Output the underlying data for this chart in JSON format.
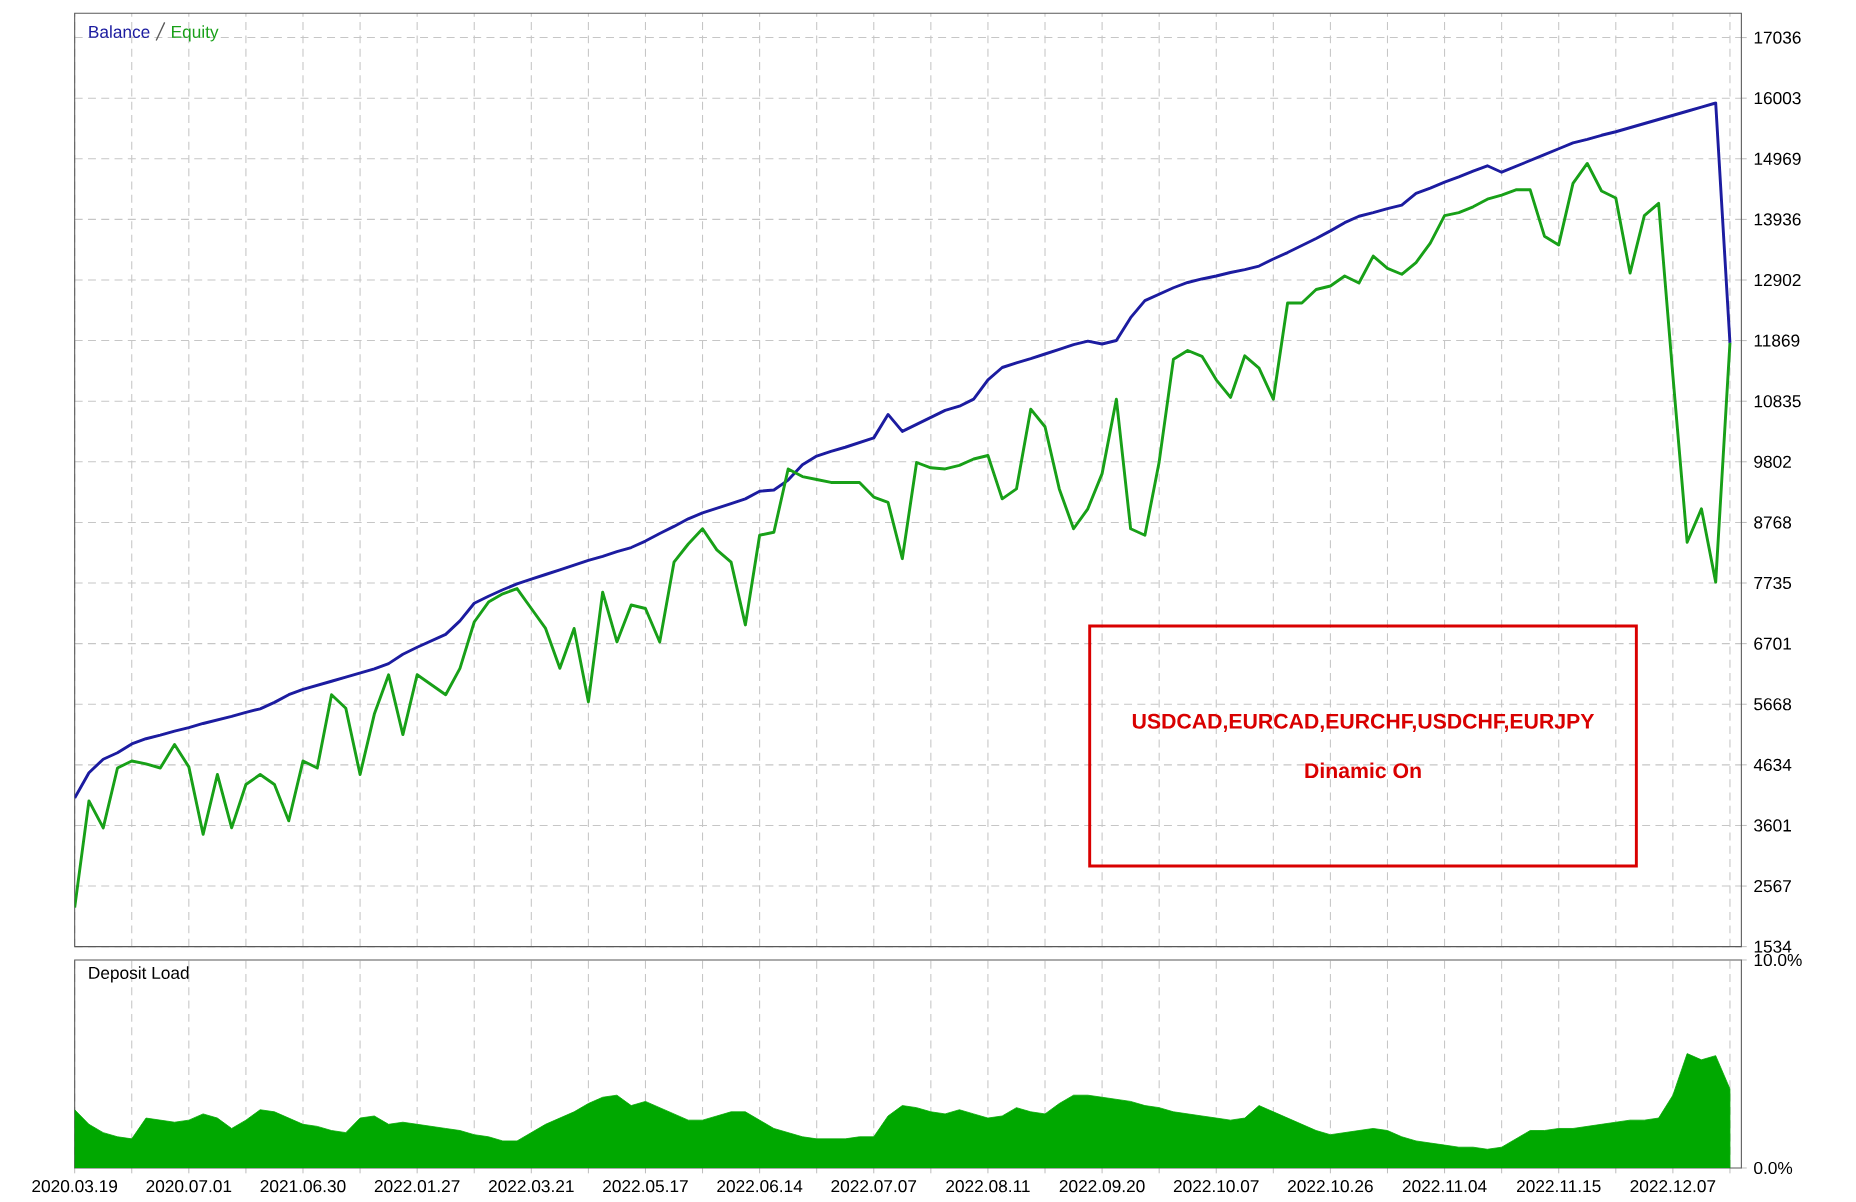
{
  "chart_data": [
    {
      "type": "line",
      "legend": "top left",
      "grid": true,
      "tick_labels": "y",
      "ylim": [
        1534,
        17450
      ],
      "categories": [
        null,
        null,
        null,
        null,
        null,
        null,
        null,
        null,
        null,
        null,
        null,
        null,
        null,
        null,
        null,
        null,
        null,
        null,
        null,
        null,
        null,
        null,
        null,
        null,
        null,
        null,
        null,
        null,
        null,
        null,
        null,
        null,
        null,
        null,
        null,
        null,
        null,
        null,
        null,
        null,
        null,
        null,
        null,
        null,
        null,
        null,
        null,
        null,
        null,
        null,
        null,
        null,
        null,
        null,
        null,
        null,
        null,
        null,
        null,
        null,
        null,
        null,
        null,
        null,
        null,
        null,
        null,
        null,
        null,
        null,
        null,
        null,
        null,
        null,
        null,
        null,
        null,
        null,
        null,
        null,
        null,
        null,
        null,
        null,
        null,
        null,
        null,
        null,
        null,
        null,
        null,
        null,
        null,
        null,
        null,
        null,
        null,
        null,
        null,
        null,
        null,
        null,
        null,
        null,
        null,
        null,
        null,
        null,
        null,
        null,
        null,
        null,
        null,
        null,
        null,
        null,
        null
      ],
      "yticks": [
        1534,
        2567,
        3601,
        4634,
        5668,
        6701,
        7735,
        8768,
        9802,
        10835,
        11869,
        12902,
        13936,
        14969,
        16003,
        17036
      ],
      "annotations": [
        "USDCAD,EURCAD,EURCHF,USDCHF,EURJPY",
        "Dinamic On"
      ],
      "series": [
        {
          "name": "Balance",
          "color": "#1c1ca0",
          "values": [
            4070,
            4500,
            4730,
            4840,
            4990,
            5080,
            5140,
            5210,
            5270,
            5340,
            5400,
            5460,
            5530,
            5590,
            5700,
            5830,
            5920,
            5990,
            6060,
            6130,
            6200,
            6270,
            6360,
            6520,
            6640,
            6750,
            6860,
            7090,
            7390,
            7510,
            7620,
            7720,
            7800,
            7880,
            7960,
            8040,
            8120,
            8190,
            8270,
            8340,
            8450,
            8580,
            8700,
            8830,
            8930,
            9010,
            9090,
            9170,
            9300,
            9320,
            9490,
            9750,
            9900,
            9980,
            10050,
            10130,
            10210,
            10610,
            10320,
            10440,
            10560,
            10680,
            10750,
            10870,
            11200,
            11410,
            11490,
            11560,
            11640,
            11720,
            11800,
            11860,
            11810,
            11870,
            12260,
            12550,
            12660,
            12770,
            12860,
            12920,
            12970,
            13030,
            13080,
            13140,
            13260,
            13370,
            13490,
            13610,
            13740,
            13880,
            13990,
            14050,
            14120,
            14180,
            14380,
            14470,
            14570,
            14660,
            14760,
            14850,
            14740,
            14840,
            14940,
            15040,
            15140,
            15240,
            15300,
            15370,
            15430,
            15500,
            15570,
            15640,
            15710,
            15780,
            15850,
            15920,
            11830
          ]
        },
        {
          "name": "Equity",
          "color": "#18a018",
          "values": [
            2200,
            4020,
            3560,
            4580,
            4700,
            4650,
            4580,
            4980,
            4600,
            3450,
            4470,
            3560,
            4300,
            4470,
            4300,
            3680,
            4700,
            4580,
            5830,
            5600,
            4470,
            5500,
            6170,
            5150,
            6170,
            6000,
            5830,
            6280,
            7070,
            7410,
            7550,
            7640,
            7300,
            6960,
            6280,
            6960,
            5710,
            7580,
            6730,
            7360,
            7300,
            6730,
            8090,
            8400,
            8660,
            8300,
            8090,
            7020,
            8550,
            8600,
            9680,
            9550,
            9500,
            9450,
            9450,
            9450,
            9200,
            9110,
            8150,
            9790,
            9700,
            9680,
            9740,
            9850,
            9910,
            9170,
            9340,
            10700,
            10400,
            9340,
            8660,
            9000,
            9600,
            10870,
            8660,
            8550,
            9800,
            11550,
            11700,
            11600,
            11200,
            10900,
            11610,
            11400,
            10870,
            12510,
            12510,
            12740,
            12800,
            12970,
            12850,
            13310,
            13100,
            13000,
            13200,
            13530,
            14000,
            14050,
            14150,
            14280,
            14350,
            14440,
            14440,
            13650,
            13500,
            14550,
            14890,
            14420,
            14300,
            13020,
            14000,
            14210,
            11270,
            8430,
            9000,
            7750,
            11830
          ]
        }
      ]
    },
    {
      "type": "area",
      "title": "Deposit Load",
      "color": "#00a800",
      "grid": "x",
      "ylim": [
        0,
        10
      ],
      "categories": [
        "2020.03.19",
        null,
        null,
        null,
        null,
        null,
        null,
        null,
        "2020.07.01",
        null,
        null,
        null,
        null,
        null,
        null,
        null,
        "2021.06.30",
        null,
        null,
        null,
        null,
        null,
        null,
        null,
        "2022.01.27",
        null,
        null,
        null,
        null,
        null,
        null,
        null,
        "2022.03.21",
        null,
        null,
        null,
        null,
        null,
        null,
        null,
        "2022.05.17",
        null,
        null,
        null,
        null,
        null,
        null,
        null,
        "2022.06.14",
        null,
        null,
        null,
        null,
        null,
        null,
        null,
        "2022.07.07",
        null,
        null,
        null,
        null,
        null,
        null,
        null,
        "2022.08.11",
        null,
        null,
        null,
        null,
        null,
        null,
        null,
        "2022.09.20",
        null,
        null,
        null,
        null,
        null,
        null,
        null,
        "2022.10.07",
        null,
        null,
        null,
        null,
        null,
        null,
        null,
        "2022.10.26",
        null,
        null,
        null,
        null,
        null,
        null,
        null,
        "2022.11.04",
        null,
        null,
        null,
        null,
        null,
        null,
        null,
        "2022.11.15",
        null,
        null,
        null,
        null,
        null,
        null,
        null,
        "2022.12.07",
        null,
        null,
        null,
        null
      ],
      "yticks": [
        {
          "value": 0,
          "label": "0.0%"
        },
        {
          "value": 10,
          "label": "10.0%"
        }
      ],
      "values": [
        2.8,
        2.1,
        1.7,
        1.5,
        1.4,
        2.4,
        2.3,
        2.2,
        2.3,
        2.6,
        2.4,
        1.9,
        2.3,
        2.8,
        2.7,
        2.4,
        2.1,
        2.0,
        1.8,
        1.7,
        2.4,
        2.5,
        2.1,
        2.2,
        2.1,
        2.0,
        1.9,
        1.8,
        1.6,
        1.5,
        1.3,
        1.3,
        1.7,
        2.1,
        2.4,
        2.7,
        3.1,
        3.4,
        3.5,
        3.0,
        3.2,
        2.9,
        2.6,
        2.3,
        2.3,
        2.5,
        2.7,
        2.7,
        2.3,
        1.9,
        1.7,
        1.5,
        1.4,
        1.4,
        1.4,
        1.5,
        1.5,
        2.5,
        3.0,
        2.9,
        2.7,
        2.6,
        2.8,
        2.6,
        2.4,
        2.5,
        2.9,
        2.7,
        2.6,
        3.1,
        3.5,
        3.5,
        3.4,
        3.3,
        3.2,
        3.0,
        2.9,
        2.7,
        2.6,
        2.5,
        2.4,
        2.3,
        2.4,
        3.0,
        2.7,
        2.4,
        2.1,
        1.8,
        1.6,
        1.7,
        1.8,
        1.9,
        1.8,
        1.5,
        1.3,
        1.2,
        1.1,
        1.0,
        1.0,
        0.9,
        1.0,
        1.4,
        1.8,
        1.8,
        1.9,
        1.9,
        2.0,
        2.1,
        2.2,
        2.3,
        2.3,
        2.4,
        3.5,
        5.5,
        5.2,
        5.4,
        3.8
      ]
    }
  ]
}
